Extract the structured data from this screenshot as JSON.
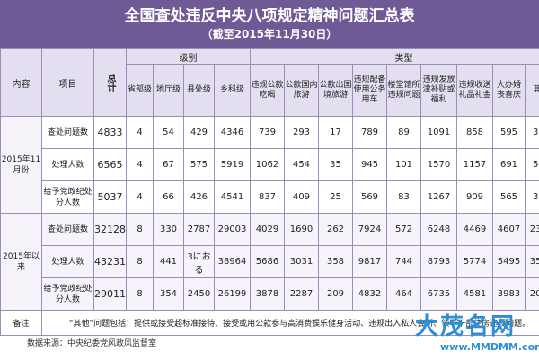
{
  "title": "全国查处违反中央八项规定精神问题汇总表",
  "subtitle": "（截至2015年11月30日）",
  "headers": {
    "content": "内容",
    "item": "项目",
    "total": "总计",
    "level": "级别",
    "type": "类型",
    "levels": [
      "省部级",
      "地厅级",
      "县处级",
      "乡科级"
    ],
    "types": [
      "违规公款吃喝",
      "公款国内旅游",
      "公款出国境旅游",
      "违规配备使用公务用车",
      "楼堂馆所违规问题",
      "违规发放津补贴或福利",
      "违规收送礼品礼金",
      "大办婚丧喜庆",
      "其他"
    ]
  },
  "groups": [
    {
      "label": "2015年11月份",
      "rows": [
        {
          "item": "查处问题数",
          "total": "4833",
          "levels": [
            "4",
            "54",
            "429",
            "4346"
          ],
          "types": [
            "739",
            "293",
            "17",
            "789",
            "89",
            "1091",
            "858",
            "595",
            "362"
          ]
        },
        {
          "item": "处理人数",
          "total": "6565",
          "levels": [
            "4",
            "67",
            "575",
            "5919"
          ],
          "types": [
            "1062",
            "454",
            "35",
            "945",
            "101",
            "1570",
            "1157",
            "691",
            "550"
          ]
        },
        {
          "item": "给予党政纪处分人数",
          "total": "5037",
          "levels": [
            "4",
            "66",
            "426",
            "4541"
          ],
          "types": [
            "837",
            "409",
            "25",
            "569",
            "83",
            "1267",
            "909",
            "565",
            "373"
          ]
        }
      ]
    },
    {
      "label": "2015年以来",
      "rows": [
        {
          "item": "查处问题数",
          "total": "32128",
          "levels": [
            "8",
            "330",
            "2787",
            "29003"
          ],
          "types": [
            "4029",
            "1690",
            "262",
            "7924",
            "572",
            "6248",
            "4469",
            "4607",
            "2327"
          ]
        },
        {
          "item": "处理人数",
          "total": "43231",
          "levels": [
            "8",
            "441",
            "3におる",
            "38964"
          ],
          "types": [
            "5686",
            "3031",
            "358",
            "9817",
            "744",
            "8793",
            "5774",
            "5495",
            "3533"
          ]
        },
        {
          "item": "给予党政纪处分人数",
          "total": "29011",
          "levels": [
            "8",
            "354",
            "2450",
            "26199"
          ],
          "types": [
            "3878",
            "2287",
            "209",
            "4832",
            "464",
            "6735",
            "4581",
            "3983",
            "2042"
          ]
        }
      ]
    }
  ],
  "note_label": "备注",
  "note_text": "“其他”问题包括：提供或接受超标准接待、接受或用公款参与高消费娱乐健身活动、违规出入私人会所、领导干部住房违规问题。",
  "source": "数据来源：中央纪委党风政风监督室",
  "watermark": "大茂名网",
  "watermark_url": "www.MMDMM.com"
}
